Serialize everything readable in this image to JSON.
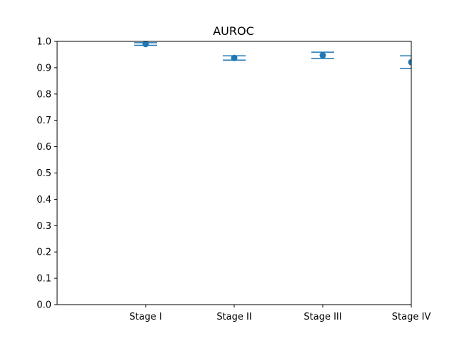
{
  "chart_data": {
    "type": "scatter",
    "title": "AUROC",
    "xlabel": "",
    "ylabel": "",
    "categories": [
      "Stage I",
      "Stage II",
      "Stage III",
      "Stage IV"
    ],
    "series": [
      {
        "values": [
          0.99,
          0.937,
          0.947,
          0.921
        ],
        "error_low": [
          0.985,
          0.929,
          0.935,
          0.897
        ],
        "error_high": [
          0.995,
          0.945,
          0.959,
          0.945
        ]
      }
    ],
    "ylim": [
      0,
      1.0
    ],
    "yticks": [
      "0.0",
      "0.1",
      "0.2",
      "0.3",
      "0.4",
      "0.5",
      "0.6",
      "0.7",
      "0.8",
      "0.9",
      "1.0"
    ],
    "grid": false,
    "color": "#1f77b4"
  }
}
